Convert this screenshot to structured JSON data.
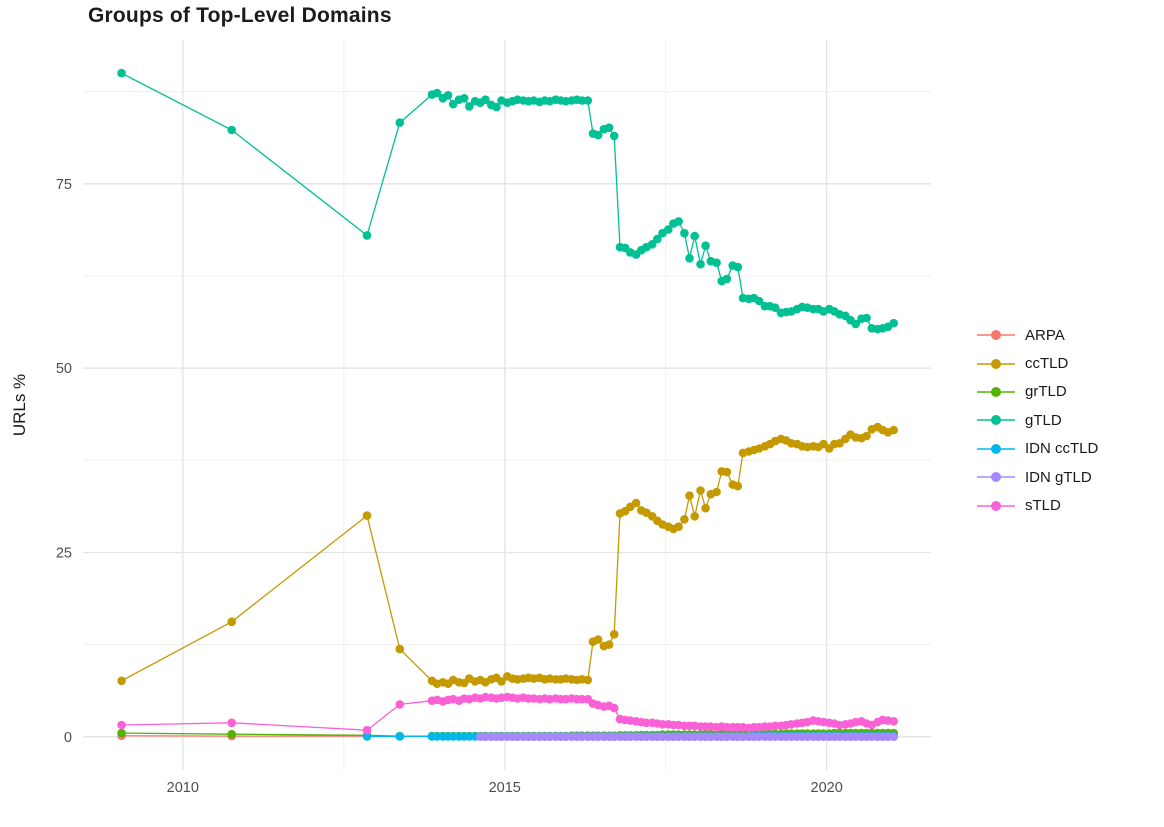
{
  "title": "Groups of Top-Level Domains",
  "axes": {
    "y_label": "URLs %",
    "y_tick_labels": [
      "0",
      "25",
      "50",
      "75"
    ],
    "x_tick_labels": [
      "2010",
      "2015",
      "2020"
    ]
  },
  "styles": {
    "background": "#FFFFFF",
    "grid_major": "#E3E3E3",
    "grid_minor": "#EFEFEF",
    "tick_color": "#4D4D4D",
    "text_color": "#1A1A1A"
  },
  "chart_data": {
    "type": "line",
    "title": "Groups of Top-Level Domains",
    "xlabel": "",
    "ylabel": "URLs %",
    "grid": true,
    "legend_position": "right",
    "x_ticks": [
      2010,
      2015,
      2020
    ],
    "x_minor_ticks": [
      2012.5,
      2017.5
    ],
    "y_ticks": [
      0,
      25,
      50,
      75
    ],
    "y_minor_ticks": [
      12.5,
      37.5,
      62.5,
      87.5
    ],
    "x_domain": [
      2008.45,
      2021.62
    ],
    "y_domain": [
      -4.5,
      94.5
    ],
    "ylim": [
      0,
      90
    ],
    "dense_x": [
      2013.87,
      2013.95,
      2014.04,
      2014.12,
      2014.2,
      2014.29,
      2014.37,
      2014.45,
      2014.54,
      2014.62,
      2014.7,
      2014.79,
      2014.87,
      2014.95,
      2015.04,
      2015.12,
      2015.2,
      2015.29,
      2015.37,
      2015.45,
      2015.54,
      2015.62,
      2015.7,
      2015.79,
      2015.87,
      2015.95,
      2016.04,
      2016.12,
      2016.2,
      2016.29,
      2016.37,
      2016.45,
      2016.54,
      2016.62,
      2016.7,
      2016.79,
      2016.87,
      2016.95,
      2017.04,
      2017.12,
      2017.2,
      2017.29,
      2017.37,
      2017.45,
      2017.54,
      2017.62,
      2017.7,
      2017.79,
      2017.87,
      2017.95,
      2018.04,
      2018.12,
      2018.2,
      2018.29,
      2018.37,
      2018.45,
      2018.54,
      2018.62,
      2018.7,
      2018.79,
      2018.87,
      2018.95,
      2019.04,
      2019.12,
      2019.2,
      2019.29,
      2019.37,
      2019.45,
      2019.54,
      2019.62,
      2019.7,
      2019.79,
      2019.87,
      2019.95,
      2020.04,
      2020.12,
      2020.2,
      2020.29,
      2020.37,
      2020.45,
      2020.54,
      2020.62,
      2020.7,
      2020.79,
      2020.87,
      2020.95,
      2021.04
    ],
    "series": [
      {
        "name": "ARPA",
        "color": "#F8766D",
        "early": [
          [
            2009.05,
            0.15
          ],
          [
            2010.76,
            0.1
          ],
          [
            2012.86,
            0.1
          ]
        ],
        "dense": null
      },
      {
        "name": "ccTLD",
        "color": "#C49A00",
        "early": [
          [
            2009.05,
            7.6
          ],
          [
            2010.76,
            15.6
          ],
          [
            2012.86,
            30.0
          ],
          [
            2013.37,
            11.9
          ]
        ],
        "dense": [
          7.6,
          7.2,
          7.4,
          7.2,
          7.7,
          7.4,
          7.3,
          7.9,
          7.5,
          7.7,
          7.4,
          7.8,
          8.0,
          7.5,
          8.2,
          7.9,
          7.8,
          7.9,
          8.0,
          7.9,
          8.0,
          7.8,
          7.9,
          7.8,
          7.8,
          7.9,
          7.8,
          7.7,
          7.8,
          7.7,
          12.9,
          13.2,
          12.3,
          12.5,
          13.9,
          30.3,
          30.6,
          31.2,
          31.7,
          30.7,
          30.4,
          29.9,
          29.3,
          28.8,
          28.5,
          28.2,
          28.5,
          29.5,
          32.7,
          29.9,
          33.4,
          31.0,
          32.9,
          33.2,
          36.0,
          35.9,
          34.2,
          34.0,
          38.5,
          38.7,
          38.9,
          39.1,
          39.4,
          39.7,
          40.1,
          40.4,
          40.2,
          39.8,
          39.7,
          39.4,
          39.3,
          39.4,
          39.3,
          39.7,
          39.1,
          39.7,
          39.8,
          40.4,
          41.0,
          40.6,
          40.5,
          40.8,
          41.7,
          42.0,
          41.6,
          41.3,
          41.6
        ]
      },
      {
        "name": "grTLD",
        "color": "#53B400",
        "early": [
          [
            2009.05,
            0.5
          ],
          [
            2010.76,
            0.35
          ],
          [
            2012.86,
            0.2
          ],
          [
            2013.37,
            0.1
          ]
        ],
        "dense": [
          0.1,
          0.1,
          0.1,
          0.1,
          0.1,
          0.1,
          0.1,
          0.1,
          0.1,
          0.1,
          0.1,
          0.1,
          0.1,
          0.1,
          0.1,
          0.1,
          0.1,
          0.1,
          0.1,
          0.1,
          0.1,
          0.1,
          0.1,
          0.1,
          0.1,
          0.1,
          0.15,
          0.15,
          0.15,
          0.15,
          0.15,
          0.15,
          0.15,
          0.15,
          0.15,
          0.2,
          0.2,
          0.2,
          0.2,
          0.25,
          0.25,
          0.25,
          0.25,
          0.3,
          0.3,
          0.3,
          0.3,
          0.3,
          0.3,
          0.3,
          0.3,
          0.35,
          0.35,
          0.35,
          0.35,
          0.35,
          0.35,
          0.4,
          0.4,
          0.4,
          0.4,
          0.4,
          0.4,
          0.4,
          0.4,
          0.4,
          0.45,
          0.45,
          0.45,
          0.45,
          0.45,
          0.45,
          0.45,
          0.45,
          0.45,
          0.5,
          0.5,
          0.5,
          0.5,
          0.5,
          0.5,
          0.5,
          0.5,
          0.5,
          0.5,
          0.5,
          0.5
        ]
      },
      {
        "name": "gTLD",
        "color": "#00C094",
        "early": [
          [
            2009.05,
            90.0
          ],
          [
            2010.76,
            82.3
          ],
          [
            2012.86,
            68.0
          ],
          [
            2013.37,
            83.3
          ]
        ],
        "dense": [
          87.1,
          87.3,
          86.6,
          87.0,
          85.8,
          86.4,
          86.6,
          85.5,
          86.2,
          86.0,
          86.4,
          85.7,
          85.4,
          86.3,
          86.0,
          86.2,
          86.4,
          86.3,
          86.2,
          86.3,
          86.1,
          86.3,
          86.2,
          86.4,
          86.3,
          86.2,
          86.3,
          86.4,
          86.3,
          86.3,
          81.8,
          81.6,
          82.4,
          82.6,
          81.5,
          66.4,
          66.3,
          65.7,
          65.4,
          66.0,
          66.4,
          66.8,
          67.5,
          68.3,
          68.8,
          69.6,
          69.9,
          68.3,
          64.9,
          67.9,
          64.1,
          66.6,
          64.5,
          64.3,
          61.8,
          62.1,
          63.9,
          63.7,
          59.5,
          59.4,
          59.5,
          59.1,
          58.4,
          58.4,
          58.2,
          57.5,
          57.6,
          57.7,
          58.0,
          58.3,
          58.2,
          58.0,
          58.0,
          57.7,
          58.0,
          57.7,
          57.3,
          57.1,
          56.5,
          56.0,
          56.7,
          56.8,
          55.4,
          55.3,
          55.4,
          55.6,
          56.1
        ]
      },
      {
        "name": "IDN ccTLD",
        "color": "#00B6EB",
        "early": [
          [
            2012.86,
            0.05
          ],
          [
            2013.37,
            0.05
          ]
        ],
        "dense": [
          0.05,
          0.05,
          0.05,
          0.05,
          0.05,
          0.05,
          0.05,
          0.05,
          0.05,
          0.05,
          0.05,
          0.05,
          0.05,
          0.05,
          0.05,
          0.05,
          0.05,
          0.05,
          0.05,
          0.05,
          0.05,
          0.05,
          0.05,
          0.05,
          0.05,
          0.05,
          0.05,
          0.05,
          0.05,
          0.05,
          0.05,
          0.05,
          0.05,
          0.05,
          0.05,
          0.05,
          0.05,
          0.05,
          0.05,
          0.05,
          0.05,
          0.05,
          0.05,
          0.05,
          0.05,
          0.05,
          0.05,
          0.05,
          0.05,
          0.05,
          0.05,
          0.05,
          0.05,
          0.05,
          0.05,
          0.05,
          0.05,
          0.05,
          0.05,
          0.05,
          0.1,
          0.1,
          0.1,
          0.1,
          0.1,
          0.1,
          0.1,
          0.1,
          0.1,
          0.1,
          0.1,
          0.1,
          0.1,
          0.1,
          0.1,
          0.1,
          0.1,
          0.1,
          0.1,
          0.1,
          0.1,
          0.1,
          0.1,
          0.1,
          0.1,
          0.1,
          0.1
        ]
      },
      {
        "name": "IDN gTLD",
        "color": "#A58AFF",
        "early": [],
        "dense": [
          null,
          null,
          null,
          null,
          null,
          null,
          null,
          null,
          null,
          0.02,
          0.02,
          0.02,
          0.02,
          0.02,
          0.02,
          0.02,
          0.02,
          0.02,
          0.02,
          0.02,
          0.02,
          0.02,
          0.02,
          0.02,
          0.02,
          0.02,
          0.02,
          0.02,
          0.02,
          0.02,
          0.02,
          0.02,
          0.02,
          0.02,
          0.02,
          0.02,
          0.02,
          0.02,
          0.02,
          0.02,
          0.02,
          0.02,
          0.02,
          0.02,
          0.02,
          0.02,
          0.02,
          0.02,
          0.02,
          0.02,
          0.02,
          0.02,
          0.02,
          0.02,
          0.02,
          0.02,
          0.02,
          0.02,
          0.02,
          0.02,
          0.02,
          0.02,
          0.02,
          0.02,
          0.02,
          0.02,
          0.02,
          0.02,
          0.02,
          0.02,
          0.02,
          0.02,
          0.02,
          0.02,
          0.02,
          0.02,
          0.02,
          0.02,
          0.02,
          0.02,
          0.02,
          0.02,
          0.02,
          0.02,
          0.02,
          0.02,
          0.02
        ]
      },
      {
        "name": "sTLD",
        "color": "#FB61D7",
        "early": [
          [
            2009.05,
            1.6
          ],
          [
            2010.76,
            1.9
          ],
          [
            2012.86,
            0.9
          ],
          [
            2013.37,
            4.4
          ]
        ],
        "dense": [
          4.9,
          5.0,
          4.8,
          5.0,
          5.1,
          4.9,
          5.2,
          5.1,
          5.3,
          5.2,
          5.4,
          5.3,
          5.2,
          5.3,
          5.4,
          5.3,
          5.2,
          5.3,
          5.2,
          5.2,
          5.1,
          5.2,
          5.1,
          5.2,
          5.1,
          5.1,
          5.2,
          5.1,
          5.1,
          5.1,
          4.5,
          4.3,
          4.1,
          4.2,
          3.9,
          2.4,
          2.3,
          2.2,
          2.1,
          2.0,
          1.9,
          1.9,
          1.8,
          1.7,
          1.7,
          1.6,
          1.6,
          1.5,
          1.5,
          1.5,
          1.4,
          1.4,
          1.4,
          1.3,
          1.4,
          1.3,
          1.3,
          1.3,
          1.3,
          1.2,
          1.3,
          1.3,
          1.4,
          1.4,
          1.5,
          1.5,
          1.6,
          1.7,
          1.8,
          1.9,
          2.0,
          2.2,
          2.1,
          2.0,
          1.9,
          1.8,
          1.6,
          1.7,
          1.8,
          2.0,
          2.1,
          1.8,
          1.6,
          2.0,
          2.3,
          2.2,
          2.1
        ]
      }
    ]
  }
}
